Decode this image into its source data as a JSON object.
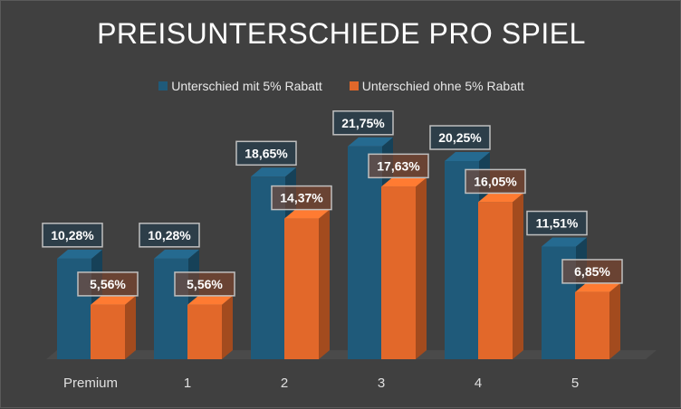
{
  "chart_data": {
    "type": "bar",
    "title": "PREISUNTERSCHIEDE PRO SPIEL",
    "categories": [
      "Premium",
      "1",
      "2",
      "3",
      "4",
      "5"
    ],
    "series": [
      {
        "name": "Unterschied mit 5% Rabatt",
        "values": [
          10.28,
          10.28,
          18.65,
          21.75,
          20.25,
          11.51
        ],
        "labels": [
          "10,28%",
          "10,28%",
          "18,65%",
          "21,75%",
          "20,25%",
          "11,51%"
        ],
        "color": "#1f5a7a"
      },
      {
        "name": "Unterschied ohne 5% Rabatt",
        "values": [
          5.56,
          5.56,
          14.37,
          17.63,
          16.05,
          6.85
        ],
        "labels": [
          "5,56%",
          "5,56%",
          "14,37%",
          "17,63%",
          "16,05%",
          "6,85%"
        ],
        "color": "#e2682a"
      }
    ],
    "ylim": [
      0,
      25
    ],
    "grid": false,
    "legend": "top",
    "style": "3d-column"
  }
}
